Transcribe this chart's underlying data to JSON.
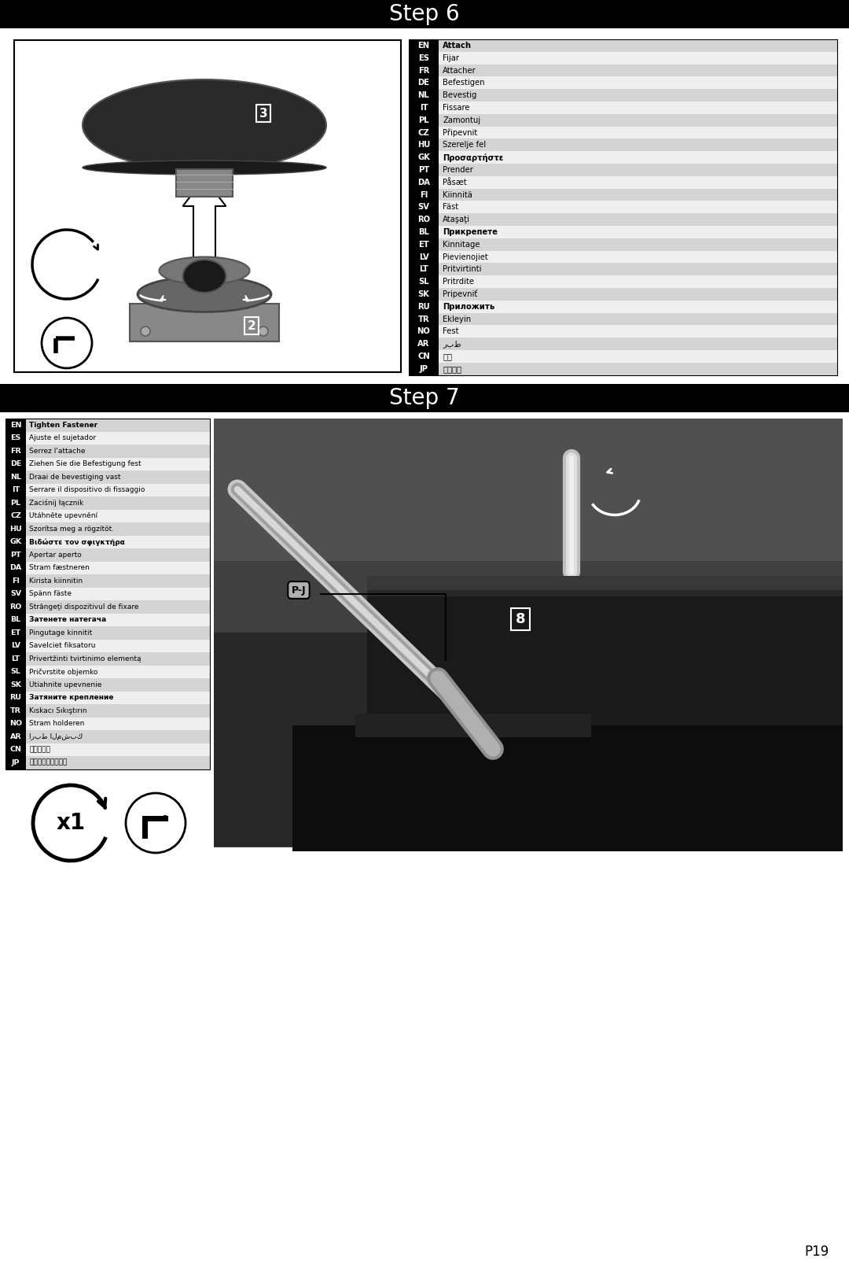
{
  "title_step6": "Step 6",
  "title_step7": "Step 7",
  "page_number": "P19",
  "header_bg": "#000000",
  "header_text_color": "#ffffff",
  "body_bg": "#ffffff",
  "step6_translations": [
    [
      "EN",
      "Attach",
      true
    ],
    [
      "ES",
      "Fijar",
      false
    ],
    [
      "FR",
      "Attacher",
      false
    ],
    [
      "DE",
      "Befestigen",
      false
    ],
    [
      "NL",
      "Bevestig",
      false
    ],
    [
      "IT",
      "Fissare",
      false
    ],
    [
      "PL",
      "Zamontuj",
      false
    ],
    [
      "CZ",
      "Připevnit",
      false
    ],
    [
      "HU",
      "Szerelje fel",
      false
    ],
    [
      "GK",
      "Προσαρτήστε",
      true
    ],
    [
      "PT",
      "Prender",
      false
    ],
    [
      "DA",
      "Påsæt",
      false
    ],
    [
      "FI",
      "Kiinnitä",
      false
    ],
    [
      "SV",
      "Fäst",
      false
    ],
    [
      "RO",
      "Ataşaţi",
      false
    ],
    [
      "BL",
      "Прикрепете",
      true
    ],
    [
      "ET",
      "Kinnitage",
      false
    ],
    [
      "LV",
      "Pievienojiet",
      false
    ],
    [
      "LT",
      "Pritvirtinti",
      false
    ],
    [
      "SL",
      "Pritrdite",
      false
    ],
    [
      "SK",
      "Pripevniť",
      false
    ],
    [
      "RU",
      "Приложить",
      true
    ],
    [
      "TR",
      "Ekleyin",
      false
    ],
    [
      "NO",
      "Fest",
      false
    ],
    [
      "AR",
      "ربط",
      false
    ],
    [
      "CN",
      "资接",
      false
    ],
    [
      "JP",
      "取り付け",
      false
    ]
  ],
  "step7_translations": [
    [
      "EN",
      "Tighten Fastener",
      true
    ],
    [
      "ES",
      "Ajuste el sujetador",
      false
    ],
    [
      "FR",
      "Serrez l'attache",
      false
    ],
    [
      "DE",
      "Ziehen Sie die Befestigung fest",
      false
    ],
    [
      "NL",
      "Draai de bevestiging vast",
      false
    ],
    [
      "IT",
      "Serrare il dispositivo di fissaggio",
      false
    ],
    [
      "PL",
      "Zaciśnij łącznik",
      false
    ],
    [
      "CZ",
      "Utáhněte upevnění",
      false
    ],
    [
      "HU",
      "Szorítsa meg a rögzítöt.",
      false
    ],
    [
      "GK",
      "Βιδώστε τον σφιγκτήρα",
      true
    ],
    [
      "PT",
      "Apertar aperto",
      false
    ],
    [
      "DA",
      "Stram fæstneren",
      false
    ],
    [
      "FI",
      "Kirista kiinnitin",
      false
    ],
    [
      "SV",
      "Spänn fäste",
      false
    ],
    [
      "RO",
      "Strângeţi dispozitivul de fixare",
      false
    ],
    [
      "BL",
      "Затенете натегача",
      true
    ],
    [
      "ET",
      "Pingutage kinnitit",
      false
    ],
    [
      "LV",
      "Savelciet fiksatoru",
      false
    ],
    [
      "LT",
      "Privertžinti tvirtinimo elementą",
      false
    ],
    [
      "SL",
      "Pričvrstite objemko",
      false
    ],
    [
      "SK",
      "Utiahnite upevnenie",
      false
    ],
    [
      "RU",
      "Затяните крепление",
      true
    ],
    [
      "TR",
      "Kıskacı Sıkıştırın",
      false
    ],
    [
      "NO",
      "Stram holderen",
      false
    ],
    [
      "AR",
      "اربط المشبك",
      false
    ],
    [
      "CN",
      "打紧紧固件",
      false
    ],
    [
      "JP",
      "留め具を締めます。",
      false
    ]
  ]
}
